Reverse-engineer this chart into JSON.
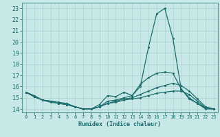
{
  "xlabel": "Humidex (Indice chaleur)",
  "bg_color": "#c8e8e8",
  "grid_color": "#aad0d0",
  "line_color": "#1a6b6b",
  "spine_color": "#5a9a9a",
  "xlim": [
    -0.5,
    23.5
  ],
  "ylim": [
    13.7,
    23.5
  ],
  "yticks": [
    14,
    15,
    16,
    17,
    18,
    19,
    20,
    21,
    22,
    23
  ],
  "xticks": [
    0,
    1,
    2,
    3,
    4,
    5,
    6,
    7,
    8,
    9,
    10,
    11,
    12,
    13,
    14,
    15,
    16,
    17,
    18,
    19,
    20,
    21,
    22,
    23
  ],
  "series": [
    {
      "x": [
        0,
        1,
        2,
        3,
        4,
        5,
        6,
        7,
        8,
        9,
        10,
        11,
        12,
        13,
        14,
        15,
        16,
        17,
        18,
        19,
        20,
        21,
        22,
        23
      ],
      "y": [
        15.5,
        15.2,
        14.8,
        14.7,
        14.6,
        14.5,
        14.2,
        14.0,
        14.0,
        14.4,
        15.2,
        15.1,
        15.5,
        15.2,
        16.0,
        19.5,
        22.5,
        23.0,
        20.3,
        15.8,
        15.0,
        14.5,
        14.0,
        14.0
      ]
    },
    {
      "x": [
        0,
        1,
        2,
        3,
        4,
        5,
        6,
        7,
        8,
        9,
        10,
        11,
        12,
        13,
        14,
        15,
        16,
        17,
        18,
        19,
        20,
        21,
        22,
        23
      ],
      "y": [
        15.5,
        15.1,
        14.8,
        14.7,
        14.5,
        14.4,
        14.2,
        14.0,
        14.0,
        14.2,
        14.7,
        14.8,
        15.0,
        15.2,
        16.2,
        16.8,
        17.2,
        17.3,
        17.2,
        15.8,
        14.9,
        14.5,
        14.1,
        14.0
      ]
    },
    {
      "x": [
        0,
        1,
        2,
        3,
        4,
        5,
        6,
        7,
        8,
        9,
        10,
        11,
        12,
        13,
        14,
        15,
        16,
        17,
        18,
        19,
        20,
        21,
        22,
        23
      ],
      "y": [
        15.5,
        15.1,
        14.8,
        14.6,
        14.5,
        14.4,
        14.2,
        14.0,
        14.0,
        14.2,
        14.5,
        14.7,
        14.9,
        15.0,
        15.3,
        15.6,
        15.9,
        16.1,
        16.3,
        16.1,
        15.6,
        14.9,
        14.2,
        14.0
      ]
    },
    {
      "x": [
        0,
        1,
        2,
        3,
        4,
        5,
        6,
        7,
        8,
        9,
        10,
        11,
        12,
        13,
        14,
        15,
        16,
        17,
        18,
        19,
        20,
        21,
        22,
        23
      ],
      "y": [
        15.5,
        15.1,
        14.8,
        14.7,
        14.5,
        14.4,
        14.2,
        14.0,
        14.0,
        14.2,
        14.5,
        14.6,
        14.8,
        14.9,
        15.0,
        15.2,
        15.4,
        15.5,
        15.6,
        15.6,
        15.3,
        14.7,
        14.1,
        14.0
      ]
    }
  ]
}
